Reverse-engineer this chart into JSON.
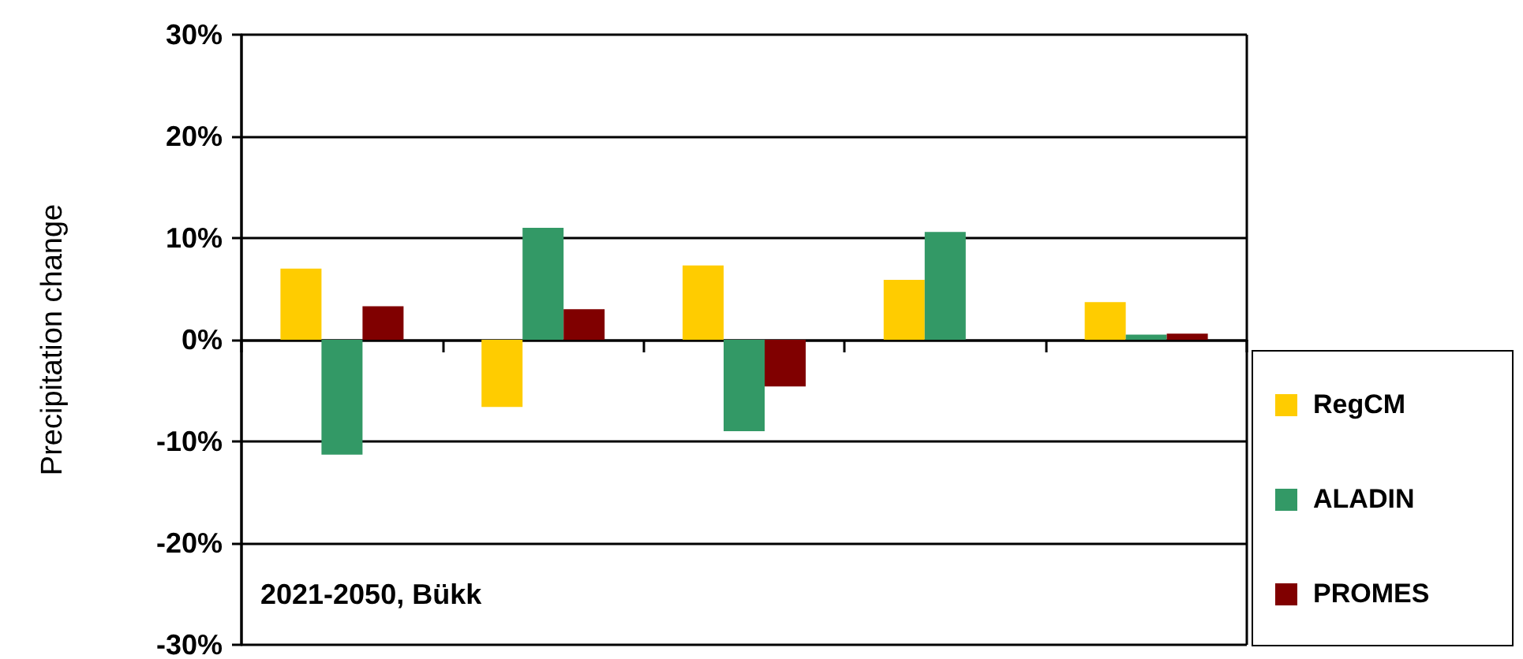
{
  "chart_data": {
    "type": "bar",
    "ylabel": "Precipitation change",
    "categories": [
      null,
      null,
      null,
      null,
      null
    ],
    "series": [
      {
        "name": "RegCM",
        "color": "#ffcc00",
        "values": [
          7.0,
          -6.6,
          7.3,
          5.9,
          3.7
        ]
      },
      {
        "name": "ALADIN",
        "color": "#339966",
        "values": [
          -11.3,
          11.0,
          -9.0,
          10.6,
          0.5
        ]
      },
      {
        "name": "PROMES",
        "color": "#800000",
        "values": [
          3.3,
          3.0,
          -4.6,
          null,
          0.6
        ]
      }
    ],
    "ylim": [
      -30,
      30
    ],
    "yticks": [
      {
        "value": -30,
        "label": "-30%"
      },
      {
        "value": -20,
        "label": "-20%"
      },
      {
        "value": -10,
        "label": "-10%"
      },
      {
        "value": 0,
        "label": "0%"
      },
      {
        "value": 10,
        "label": "10%"
      },
      {
        "value": 20,
        "label": "20%"
      },
      {
        "value": 30,
        "label": "30%"
      }
    ],
    "grid": "y",
    "legend": "right",
    "annotations": [
      "2021-2050, Bükk"
    ]
  }
}
